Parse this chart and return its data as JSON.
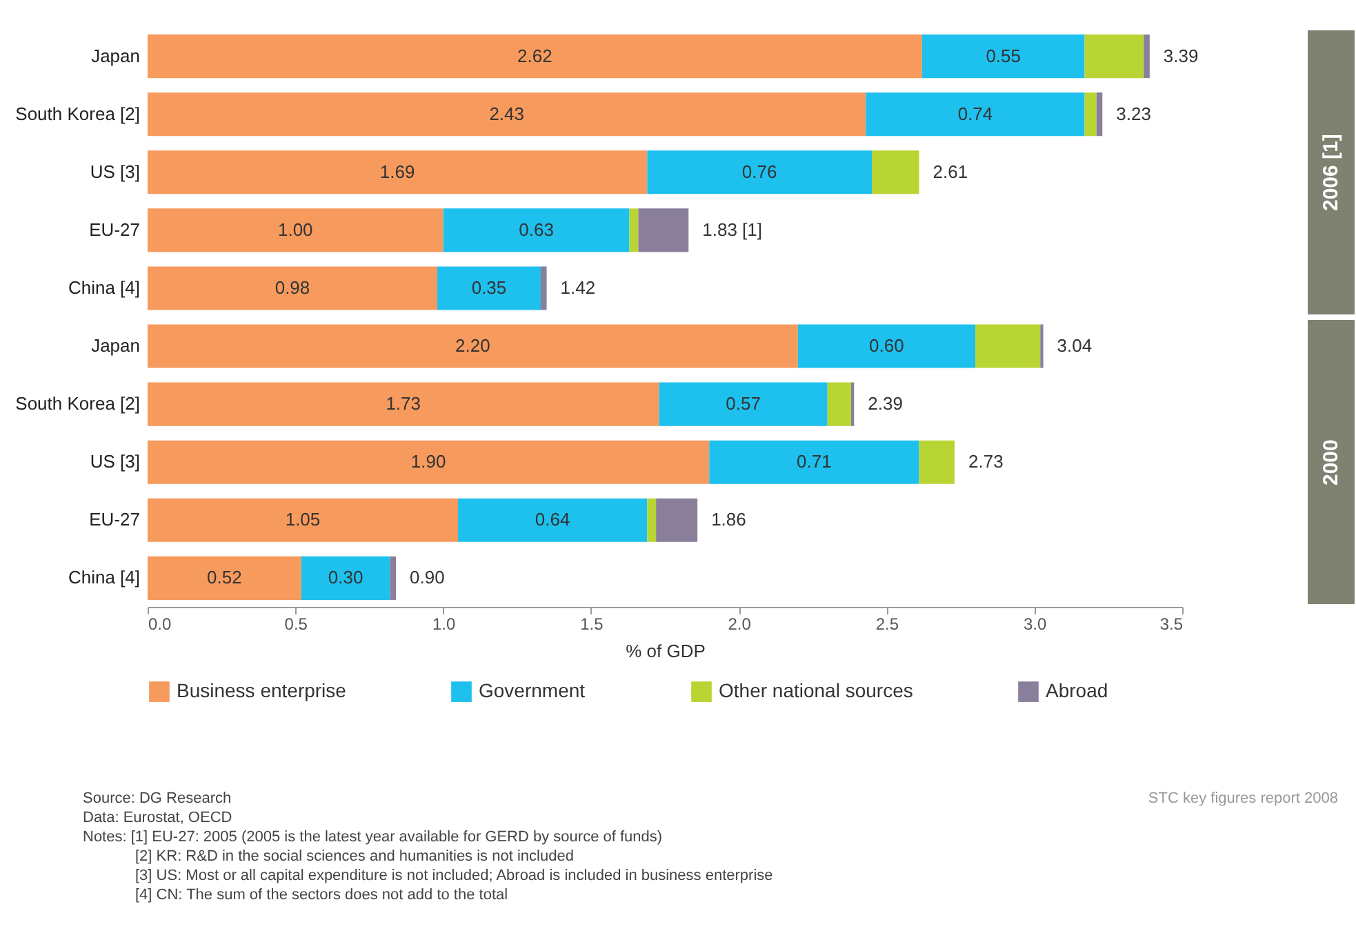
{
  "chart_data": {
    "type": "bar",
    "orientation": "horizontal",
    "stacked": true,
    "categories": [
      "Japan",
      "South Korea [2]",
      "US [3]",
      "EU-27",
      "China [4]",
      "Japan",
      "South Korea [2]",
      "US [3]",
      "EU-27",
      "China [4]"
    ],
    "series": [
      {
        "name": "Business enterprise",
        "color": "#f79a5e",
        "values": [
          2.62,
          2.43,
          1.69,
          1.0,
          0.98,
          2.2,
          1.73,
          1.9,
          1.05,
          0.52
        ],
        "value_labels": [
          "2.62",
          "2.43",
          "1.69",
          "1.00",
          "0.98",
          "2.20",
          "1.73",
          "1.90",
          "1.05",
          "0.52"
        ]
      },
      {
        "name": "Government",
        "color": "#1ec0ee",
        "values": [
          0.55,
          0.74,
          0.76,
          0.63,
          0.35,
          0.6,
          0.57,
          0.71,
          0.64,
          0.3
        ],
        "value_labels": [
          "0.55",
          "0.74",
          "0.76",
          "0.63",
          "0.35",
          "0.60",
          "0.57",
          "0.71",
          "0.64",
          "0.30"
        ]
      },
      {
        "name": "Other national sources",
        "color": "#b9d534",
        "values": [
          0.2,
          0.04,
          0.16,
          0.03,
          null,
          0.22,
          0.08,
          0.12,
          0.03,
          null
        ]
      },
      {
        "name": "Abroad",
        "color": "#8a7f9a",
        "values": [
          0.02,
          0.02,
          null,
          0.17,
          0.02,
          0.01,
          0.01,
          null,
          0.14,
          0.02
        ]
      }
    ],
    "totals": [
      "3.39",
      "3.23",
      "2.61",
      "1.83 [1]",
      null,
      "3.04",
      "2.39",
      "2.73",
      "1.86",
      null
    ],
    "xlabel": "% of GDP",
    "xlim": [
      0,
      3.5
    ],
    "xticks": [
      {
        "value": 0,
        "label": "0.0"
      },
      {
        "value": 0.5,
        "label": "0.5"
      },
      {
        "value": 1,
        "label": "1.0"
      },
      {
        "value": 1.5,
        "label": "1.5"
      },
      {
        "value": 2,
        "label": "2.0"
      },
      {
        "value": 2.5,
        "label": "2.5"
      },
      {
        "value": 3,
        "label": "3.0"
      },
      {
        "value": 3.5,
        "label": "3.5"
      }
    ],
    "legend": "bottom",
    "annotations": [
      "2006 [1]",
      "2000",
      "Source: DG Research",
      "Data: Eurostat, OECD",
      "Notes: [1] EU-27: 2005 (2005 is the latest year available for GERD by source of funds)",
      "[2] KR: R&D in the social sciences and humanities is not included",
      "[3] US: Most or all capital expenditure is not included; Abroad is included in business enterprise",
      "[4] CN: The sum of the sectors does not add to the total",
      "STC key figures report 2008",
      {
        "text": "1.42",
        "x": 1.35,
        "y": "China [4]"
      },
      "0.90"
    ]
  }
}
